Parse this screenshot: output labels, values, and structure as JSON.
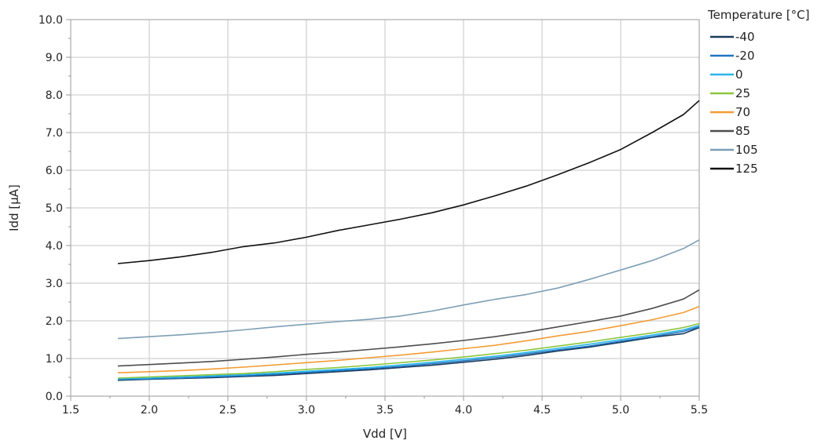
{
  "chart_data": {
    "type": "line",
    "title": "",
    "xlabel": "Vdd [V]",
    "ylabel": "Idd [µA]",
    "xlim": [
      1.5,
      5.5
    ],
    "ylim": [
      0.0,
      10.0
    ],
    "xticks": [
      "1.5",
      "2.0",
      "2.5",
      "3.0",
      "3.5",
      "4.0",
      "4.5",
      "5.0",
      "5.5"
    ],
    "yticks": [
      "0.0",
      "1.0",
      "2.0",
      "3.0",
      "4.0",
      "5.0",
      "6.0",
      "7.0",
      "8.0",
      "9.0",
      "10.0"
    ],
    "grid": true,
    "legend_title": "Temperature [°C]",
    "legend_position": "top-right, outside plot",
    "x": [
      1.8,
      2.0,
      2.2,
      2.4,
      2.6,
      2.8,
      3.0,
      3.2,
      3.4,
      3.6,
      3.8,
      4.0,
      4.2,
      4.4,
      4.6,
      4.8,
      5.0,
      5.2,
      5.4,
      5.5
    ],
    "series": [
      {
        "name": "-40",
        "color": "#1b3a5a",
        "values": [
          0.42,
          0.45,
          0.47,
          0.49,
          0.52,
          0.55,
          0.6,
          0.65,
          0.7,
          0.76,
          0.82,
          0.9,
          0.98,
          1.08,
          1.2,
          1.3,
          1.43,
          1.56,
          1.66,
          1.82
        ]
      },
      {
        "name": "-20",
        "color": "#1f77c4",
        "values": [
          0.44,
          0.46,
          0.48,
          0.51,
          0.54,
          0.58,
          0.63,
          0.68,
          0.73,
          0.79,
          0.86,
          0.94,
          1.02,
          1.12,
          1.23,
          1.33,
          1.46,
          1.58,
          1.72,
          1.84
        ]
      },
      {
        "name": "0",
        "color": "#2bb5e8",
        "values": [
          0.46,
          0.48,
          0.51,
          0.54,
          0.57,
          0.61,
          0.66,
          0.71,
          0.76,
          0.83,
          0.9,
          0.98,
          1.06,
          1.16,
          1.27,
          1.38,
          1.5,
          1.62,
          1.76,
          1.88
        ]
      },
      {
        "name": "25",
        "color": "#8cc63f",
        "values": [
          0.48,
          0.51,
          0.54,
          0.57,
          0.6,
          0.65,
          0.71,
          0.76,
          0.82,
          0.89,
          0.96,
          1.04,
          1.13,
          1.22,
          1.33,
          1.44,
          1.56,
          1.68,
          1.82,
          1.93
        ]
      },
      {
        "name": "70",
        "color": "#f39c34",
        "values": [
          0.62,
          0.65,
          0.68,
          0.72,
          0.77,
          0.83,
          0.89,
          0.95,
          1.02,
          1.09,
          1.17,
          1.26,
          1.35,
          1.47,
          1.6,
          1.72,
          1.87,
          2.03,
          2.22,
          2.38
        ]
      },
      {
        "name": "85",
        "color": "#4d4d4f",
        "values": [
          0.8,
          0.84,
          0.88,
          0.92,
          0.98,
          1.04,
          1.11,
          1.17,
          1.24,
          1.31,
          1.39,
          1.48,
          1.58,
          1.7,
          1.84,
          1.98,
          2.13,
          2.33,
          2.58,
          2.82
        ]
      },
      {
        "name": "105",
        "color": "#7d9fb5",
        "values": [
          1.53,
          1.58,
          1.63,
          1.69,
          1.76,
          1.84,
          1.91,
          1.98,
          2.04,
          2.13,
          2.26,
          2.42,
          2.57,
          2.7,
          2.87,
          3.1,
          3.35,
          3.6,
          3.92,
          4.15
        ]
      },
      {
        "name": "125",
        "color": "#111111",
        "values": [
          3.52,
          3.6,
          3.7,
          3.82,
          3.97,
          4.07,
          4.22,
          4.4,
          4.55,
          4.7,
          4.87,
          5.08,
          5.32,
          5.58,
          5.88,
          6.2,
          6.55,
          7.0,
          7.48,
          7.85
        ]
      }
    ]
  }
}
